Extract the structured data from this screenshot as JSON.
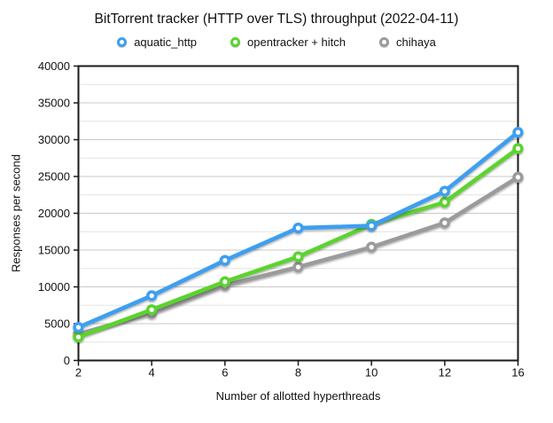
{
  "chart_data": {
    "type": "line",
    "title": "BitTorrent tracker (HTTP over TLS) throughput (2022-04-11)",
    "xlabel": "Number of allotted hyperthreads",
    "ylabel": "Responses per second",
    "x_axis_type": "categorical",
    "categories": [
      2,
      4,
      6,
      8,
      10,
      12,
      16
    ],
    "x_tick_labels": [
      "2",
      "4",
      "6",
      "8",
      "10",
      "12",
      "16"
    ],
    "series": [
      {
        "name": "aquatic_http",
        "color": "#3e9ff0",
        "values": [
          4500,
          8800,
          13600,
          18000,
          18300,
          23000,
          31000
        ]
      },
      {
        "name": "opentracker + hitch",
        "color": "#5cd32e",
        "values": [
          3200,
          6900,
          10700,
          14100,
          18500,
          21500,
          28800
        ]
      },
      {
        "name": "chihaya",
        "color": "#9b9b9b",
        "values": [
          3600,
          6400,
          10200,
          12700,
          15400,
          18700,
          24900
        ]
      }
    ],
    "ylim": [
      0,
      40000
    ],
    "y_major_step": 5000,
    "y_minor_step": 2500,
    "y_tick_labels": [
      "0",
      "5000",
      "10000",
      "15000",
      "20000",
      "25000",
      "30000",
      "35000",
      "40000"
    ],
    "grid": true,
    "legend_position": "top",
    "colors": {
      "axis_border": "#1a1a1a",
      "major_gridline": "#c9c9c9",
      "minor_gridline": "#e4e4e4",
      "marker_fill": "#ffffff"
    }
  }
}
